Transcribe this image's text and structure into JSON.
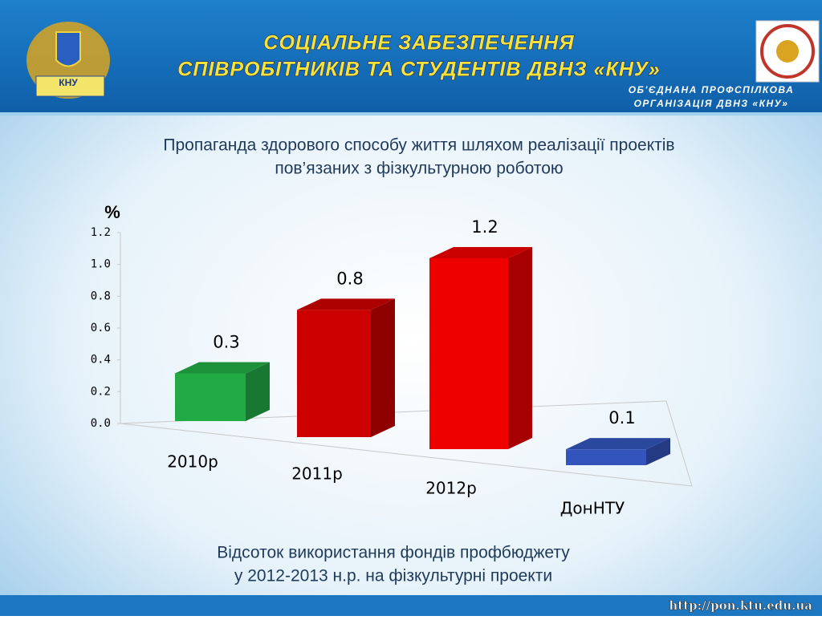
{
  "header": {
    "title": [
      "СОЦІАЛЬНЕ ЗАБЕЗПЕЧЕННЯ",
      "СПІВРОБІТНИКІВ ТА СТУДЕНТІВ ДВНЗ  «КНУ»"
    ],
    "org": [
      "ОБ'ЄДНАНА ПРОФСПІЛКОВА",
      "ОРГАНІЗАЦІЯ  ДВНЗ «КНУ»"
    ],
    "logo": "КНУ"
  },
  "subtitle": [
    "Пропаганда здорового способу життя шляхом реалізації проектів",
    "пов’язаних з фізкультурною роботою"
  ],
  "caption": [
    "Відсоток використання фондів профбюджету",
    "у 2012-2013 н.р. на фізкультурні проекти"
  ],
  "footer_url": "http://pon.ktu.edu.ua",
  "chart_data": {
    "type": "bar3d",
    "y_label": "%",
    "categories": [
      "2010р",
      "2011р",
      "2012р",
      "ДонНТУ"
    ],
    "values": [
      0.3,
      0.8,
      1.2,
      0.1
    ],
    "colors": [
      "#22aa44",
      "#cc0000",
      "#ee0000",
      "#3355bb"
    ],
    "ylim": [
      0,
      1.2
    ],
    "yticks": [
      {
        "value": 0,
        "label": "0.0"
      },
      0.2,
      0.4,
      0.6,
      0.8,
      {
        "value": 1,
        "label": "1.0"
      },
      1.2
    ]
  }
}
